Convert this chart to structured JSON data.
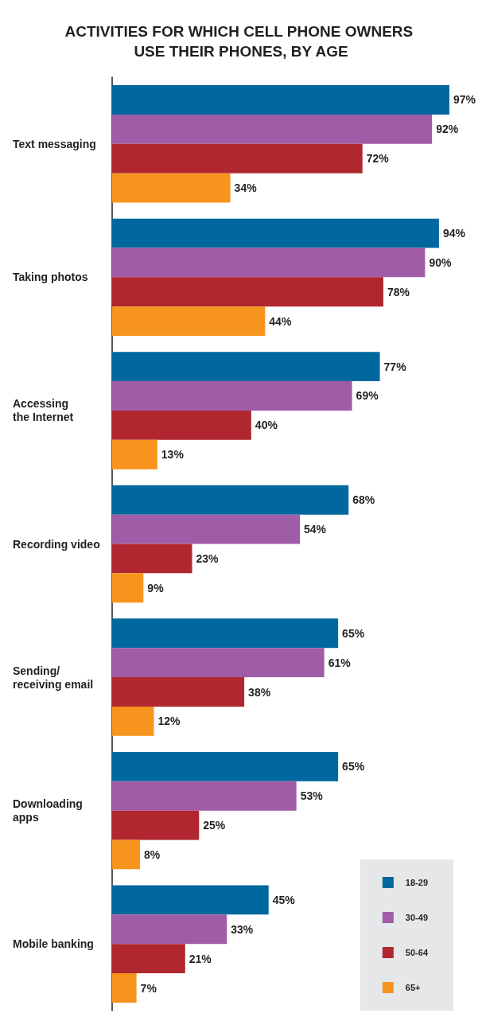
{
  "chart_data": {
    "type": "bar",
    "orientation": "horizontal",
    "title": "ACTIVITIES FOR WHICH CELL PHONE OWNERS USE THEIR PHONES, BY AGE",
    "categories": [
      "Text messaging",
      "Taking photos",
      "Accessing\nthe Internet",
      "Recording video",
      "Sending/\nreceiving email",
      "Downloading\napps",
      "Mobile banking"
    ],
    "series": [
      {
        "name": "18-29",
        "color": "#00689f",
        "values": [
          97,
          94,
          77,
          68,
          65,
          65,
          45
        ],
        "value_labels": [
          "97%",
          "94%",
          "77%",
          "68%",
          "65%",
          "65%",
          "45%"
        ]
      },
      {
        "name": "30-49",
        "color": "#a05ca6",
        "values": [
          92,
          90,
          69,
          54,
          61,
          53,
          33
        ],
        "value_labels": [
          "92%",
          "90%",
          "69%",
          "54%",
          "61%",
          "53%",
          "33%"
        ]
      },
      {
        "name": "50-64",
        "color": "#b0272f",
        "values": [
          72,
          78,
          40,
          23,
          38,
          25,
          21
        ],
        "value_labels": [
          "72%",
          "78%",
          "40%",
          "23%",
          "38%",
          "25%",
          "21%"
        ]
      },
      {
        "name": "65+",
        "color": "#f7941d",
        "values": [
          34,
          44,
          13,
          9,
          12,
          8,
          7
        ],
        "value_labels": [
          "34%",
          "44%",
          "13%",
          "9%",
          "12%",
          "8%",
          "7%"
        ]
      }
    ],
    "legend": "bottom right"
  }
}
